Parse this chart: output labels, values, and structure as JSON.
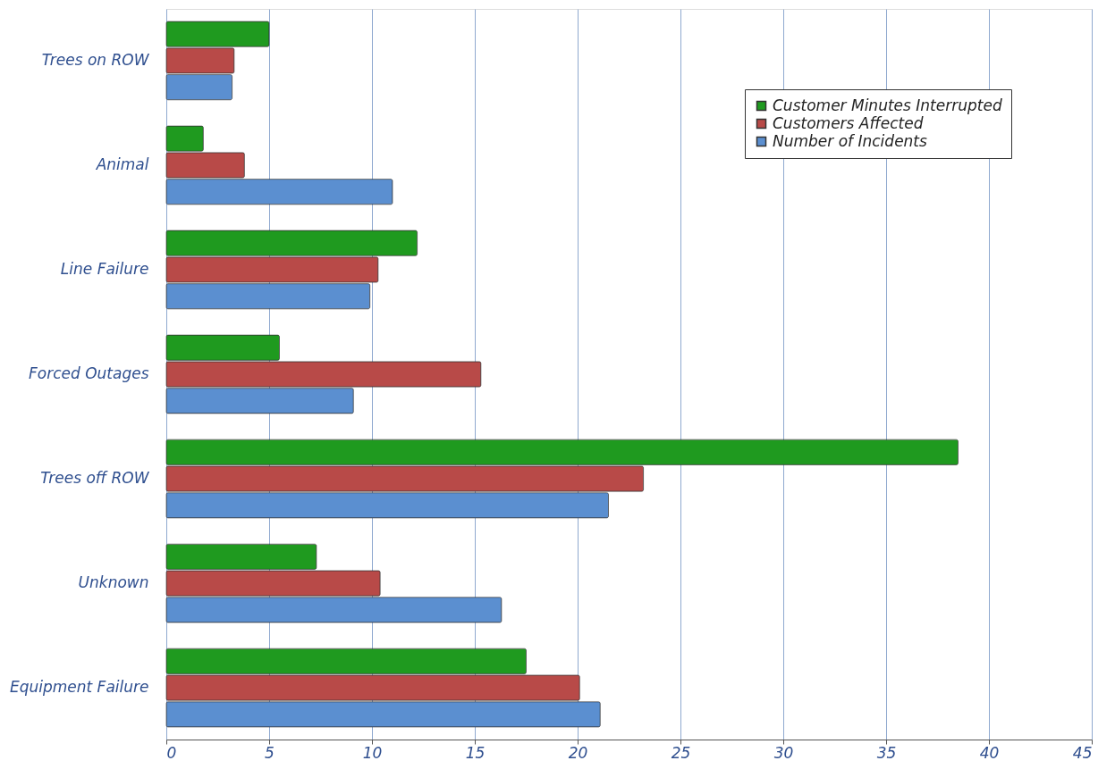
{
  "chart_data": {
    "type": "bar",
    "orientation": "horizontal",
    "categories": [
      "Trees on ROW",
      "Animal",
      "Line Failure",
      "Forced Outages",
      "Trees off ROW",
      "Unknown",
      "Equipment Failure"
    ],
    "series": [
      {
        "name": "Customer Minutes Interrupted",
        "color": "#1f9a1f",
        "values": [
          5.0,
          1.8,
          12.2,
          5.5,
          38.5,
          7.3,
          17.5
        ]
      },
      {
        "name": "Customers Affected",
        "color": "#b84a48",
        "values": [
          3.3,
          3.8,
          10.3,
          15.3,
          23.2,
          10.4,
          20.1
        ]
      },
      {
        "name": "Number of Incidents",
        "color": "#5b8fd0",
        "values": [
          3.2,
          11.0,
          9.9,
          9.1,
          21.5,
          16.3,
          21.1
        ]
      }
    ],
    "xlim": [
      0,
      45
    ],
    "xticks": [
      0,
      5,
      10,
      15,
      20,
      25,
      30,
      35,
      40,
      45
    ],
    "grid": "x",
    "legend": "top right"
  }
}
